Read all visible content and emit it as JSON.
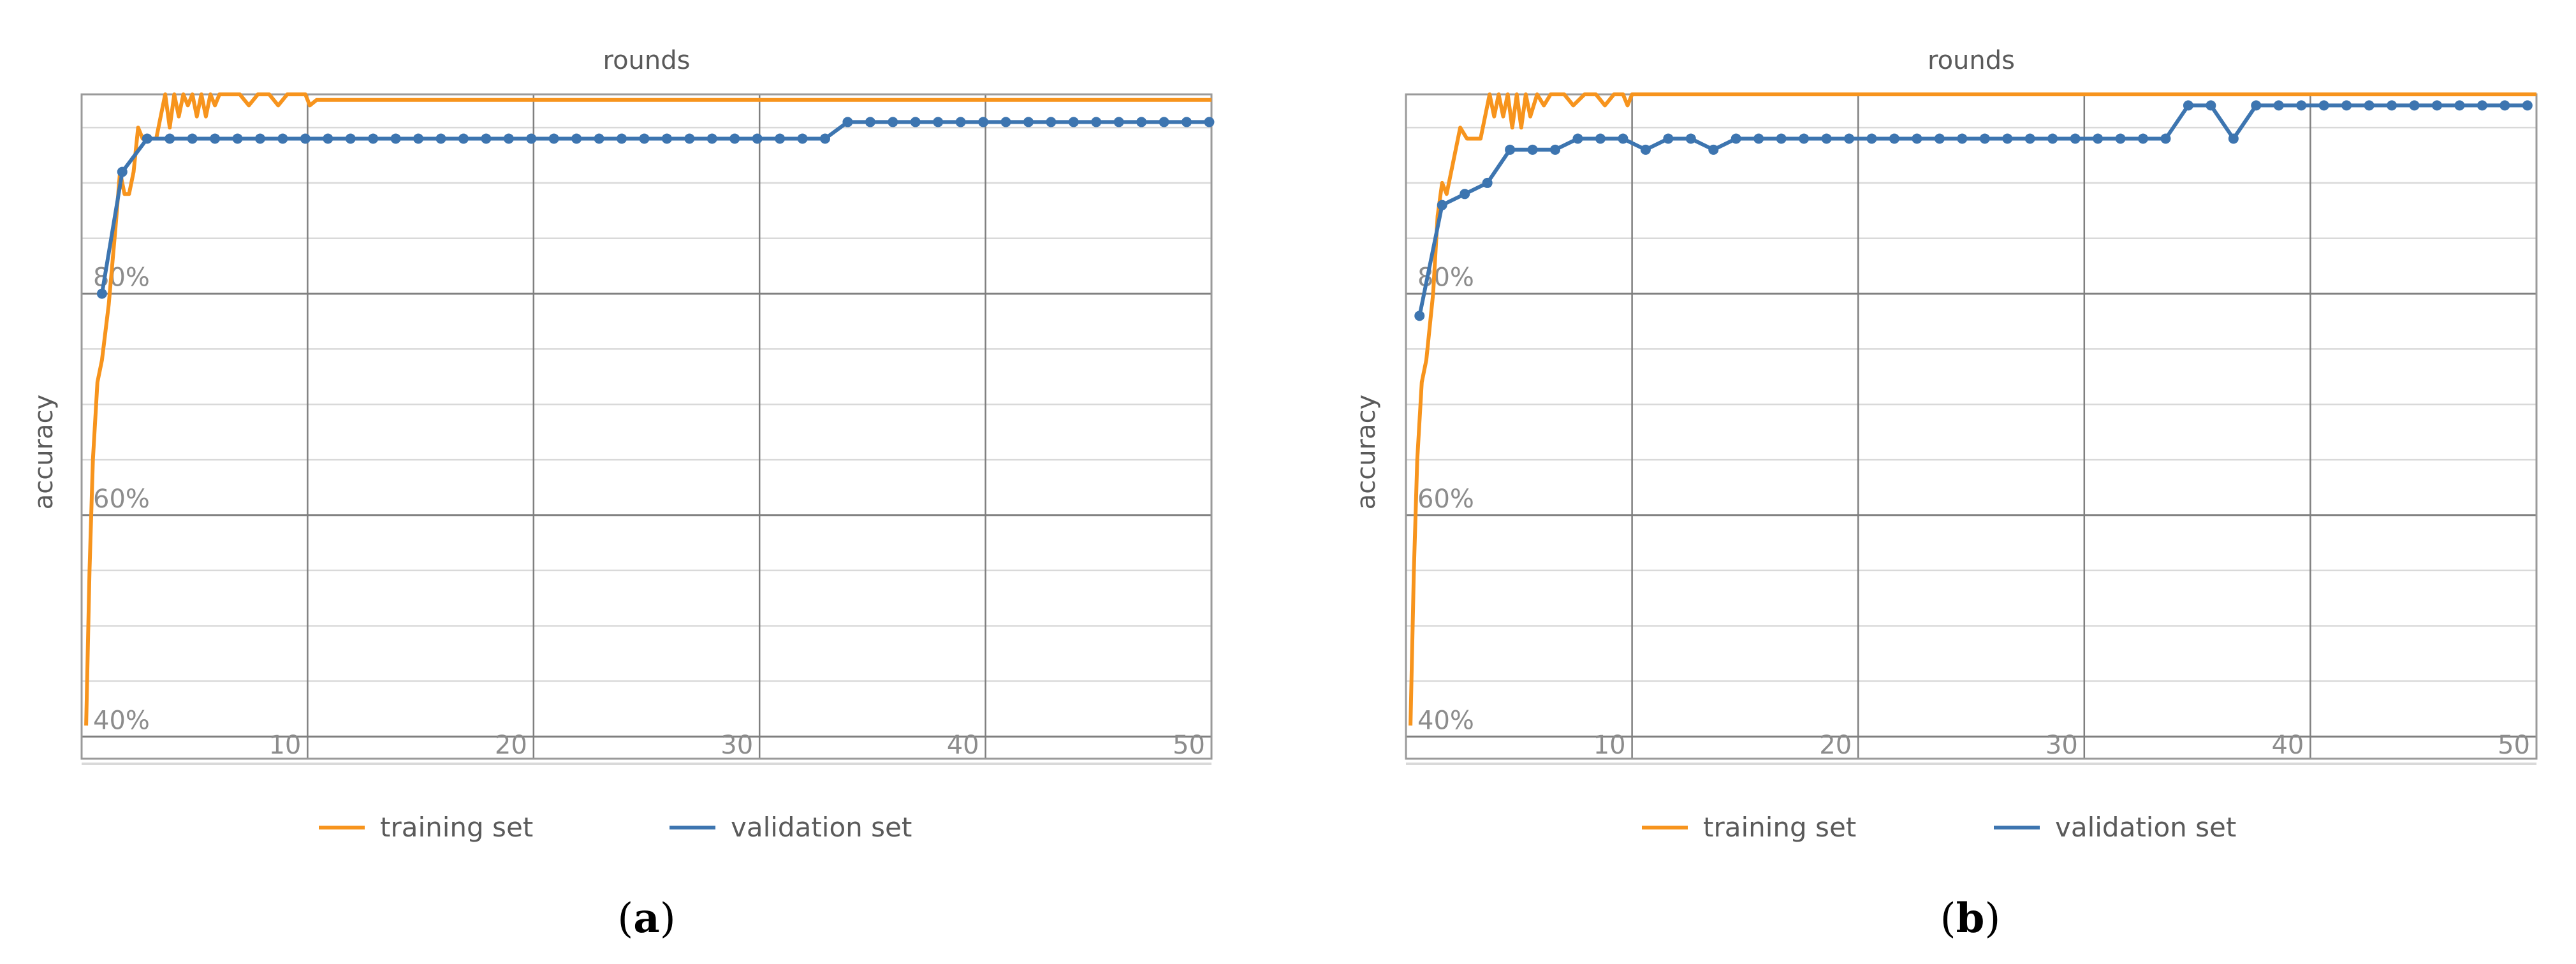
{
  "figure": {
    "panels": [
      {
        "caption": "(a)",
        "caption_letter": "a"
      },
      {
        "caption": "(b)",
        "caption_letter": "b"
      }
    ]
  },
  "colors": {
    "training": "#f7941d",
    "validation": "#3d75b0",
    "grid_major": "#7f7f7f",
    "grid_minor": "#d9d9d9",
    "frame": "#9a9a9a",
    "tick_text": "#8c8c8c",
    "title_text": "#5a5a5a"
  },
  "chart_data": [
    {
      "type": "line",
      "title": "rounds",
      "xlabel": "",
      "ylabel": "accuracy",
      "xlim": [
        0,
        50
      ],
      "ylim": [
        0.38,
        0.98
      ],
      "x_ticks": [
        10,
        20,
        30,
        40,
        50
      ],
      "x_tick_labels": [
        "10",
        "20",
        "30",
        "40",
        "50"
      ],
      "y_ticks": [
        0.4,
        0.6,
        0.8
      ],
      "y_tick_labels": [
        "40%",
        "60%",
        "80%"
      ],
      "grid": true,
      "legend": "bottom",
      "series": [
        {
          "name": "training set",
          "color_key": "training",
          "markers": false,
          "points": [
            [
              0.2,
              0.41
            ],
            [
              0.35,
              0.55
            ],
            [
              0.5,
              0.65
            ],
            [
              0.7,
              0.72
            ],
            [
              0.9,
              0.74
            ],
            [
              1.2,
              0.79
            ],
            [
              1.5,
              0.86
            ],
            [
              1.7,
              0.91
            ],
            [
              1.9,
              0.89
            ],
            [
              2.1,
              0.89
            ],
            [
              2.3,
              0.91
            ],
            [
              2.5,
              0.95
            ],
            [
              2.7,
              0.94
            ],
            [
              3.0,
              0.94
            ],
            [
              3.3,
              0.94
            ],
            [
              3.5,
              0.96
            ],
            [
              3.7,
              0.98
            ],
            [
              3.9,
              0.95
            ],
            [
              4.1,
              0.98
            ],
            [
              4.3,
              0.96
            ],
            [
              4.5,
              0.98
            ],
            [
              4.7,
              0.97
            ],
            [
              4.9,
              0.98
            ],
            [
              5.1,
              0.96
            ],
            [
              5.3,
              0.98
            ],
            [
              5.5,
              0.96
            ],
            [
              5.7,
              0.98
            ],
            [
              5.9,
              0.97
            ],
            [
              6.1,
              0.98
            ],
            [
              6.5,
              0.98
            ],
            [
              7.0,
              0.98
            ],
            [
              7.4,
              0.97
            ],
            [
              7.8,
              0.98
            ],
            [
              8.3,
              0.98
            ],
            [
              8.7,
              0.97
            ],
            [
              9.1,
              0.98
            ],
            [
              9.5,
              0.98
            ],
            [
              9.9,
              0.98
            ],
            [
              10.1,
              0.97
            ],
            [
              10.4,
              0.975
            ],
            [
              50,
              0.975
            ]
          ]
        },
        {
          "name": "validation set",
          "color_key": "validation",
          "markers": true,
          "points": [
            [
              0.9,
              0.8
            ],
            [
              1.8,
              0.91
            ],
            [
              2.9,
              0.94
            ],
            [
              3.9,
              0.94
            ],
            [
              4.9,
              0.94
            ],
            [
              5.9,
              0.94
            ],
            [
              6.9,
              0.94
            ],
            [
              7.9,
              0.94
            ],
            [
              8.9,
              0.94
            ],
            [
              9.9,
              0.94
            ],
            [
              10.9,
              0.94
            ],
            [
              11.9,
              0.94
            ],
            [
              12.9,
              0.94
            ],
            [
              13.9,
              0.94
            ],
            [
              14.9,
              0.94
            ],
            [
              15.9,
              0.94
            ],
            [
              16.9,
              0.94
            ],
            [
              17.9,
              0.94
            ],
            [
              18.9,
              0.94
            ],
            [
              19.9,
              0.94
            ],
            [
              20.9,
              0.94
            ],
            [
              21.9,
              0.94
            ],
            [
              22.9,
              0.94
            ],
            [
              23.9,
              0.94
            ],
            [
              24.9,
              0.94
            ],
            [
              25.9,
              0.94
            ],
            [
              26.9,
              0.94
            ],
            [
              27.9,
              0.94
            ],
            [
              28.9,
              0.94
            ],
            [
              29.9,
              0.94
            ],
            [
              30.9,
              0.94
            ],
            [
              31.9,
              0.94
            ],
            [
              32.9,
              0.94
            ],
            [
              33.9,
              0.955
            ],
            [
              34.9,
              0.955
            ],
            [
              35.9,
              0.955
            ],
            [
              36.9,
              0.955
            ],
            [
              37.9,
              0.955
            ],
            [
              38.9,
              0.955
            ],
            [
              39.9,
              0.955
            ],
            [
              40.9,
              0.955
            ],
            [
              41.9,
              0.955
            ],
            [
              42.9,
              0.955
            ],
            [
              43.9,
              0.955
            ],
            [
              44.9,
              0.955
            ],
            [
              45.9,
              0.955
            ],
            [
              46.9,
              0.955
            ],
            [
              47.9,
              0.955
            ],
            [
              48.9,
              0.955
            ],
            [
              49.9,
              0.955
            ]
          ]
        }
      ]
    },
    {
      "type": "line",
      "title": "rounds",
      "xlabel": "",
      "ylabel": "accuracy",
      "xlim": [
        0,
        50
      ],
      "ylim": [
        0.38,
        0.98
      ],
      "x_ticks": [
        10,
        20,
        30,
        40,
        50
      ],
      "x_tick_labels": [
        "10",
        "20",
        "30",
        "40",
        "50"
      ],
      "y_ticks": [
        0.4,
        0.6,
        0.8
      ],
      "y_tick_labels": [
        "40%",
        "60%",
        "80%"
      ],
      "grid": true,
      "legend": "bottom",
      "series": [
        {
          "name": "training set",
          "color_key": "training",
          "markers": false,
          "points": [
            [
              0.2,
              0.41
            ],
            [
              0.35,
              0.55
            ],
            [
              0.5,
              0.65
            ],
            [
              0.7,
              0.72
            ],
            [
              0.9,
              0.74
            ],
            [
              1.2,
              0.8
            ],
            [
              1.4,
              0.87
            ],
            [
              1.6,
              0.9
            ],
            [
              1.8,
              0.89
            ],
            [
              2.0,
              0.91
            ],
            [
              2.2,
              0.93
            ],
            [
              2.4,
              0.95
            ],
            [
              2.7,
              0.94
            ],
            [
              3.0,
              0.94
            ],
            [
              3.3,
              0.94
            ],
            [
              3.5,
              0.96
            ],
            [
              3.7,
              0.98
            ],
            [
              3.9,
              0.96
            ],
            [
              4.1,
              0.98
            ],
            [
              4.3,
              0.96
            ],
            [
              4.5,
              0.98
            ],
            [
              4.7,
              0.95
            ],
            [
              4.9,
              0.98
            ],
            [
              5.1,
              0.95
            ],
            [
              5.3,
              0.98
            ],
            [
              5.5,
              0.96
            ],
            [
              5.8,
              0.98
            ],
            [
              6.1,
              0.97
            ],
            [
              6.4,
              0.98
            ],
            [
              7.0,
              0.98
            ],
            [
              7.4,
              0.97
            ],
            [
              7.9,
              0.98
            ],
            [
              8.4,
              0.98
            ],
            [
              8.8,
              0.97
            ],
            [
              9.2,
              0.98
            ],
            [
              9.6,
              0.98
            ],
            [
              9.8,
              0.97
            ],
            [
              10.0,
              0.98
            ],
            [
              50,
              0.98
            ]
          ]
        },
        {
          "name": "validation set",
          "color_key": "validation",
          "markers": true,
          "points": [
            [
              0.6,
              0.78
            ],
            [
              1.6,
              0.88
            ],
            [
              2.6,
              0.89
            ],
            [
              3.6,
              0.9
            ],
            [
              4.6,
              0.93
            ],
            [
              5.6,
              0.93
            ],
            [
              6.6,
              0.93
            ],
            [
              7.6,
              0.94
            ],
            [
              8.6,
              0.94
            ],
            [
              9.6,
              0.94
            ],
            [
              10.6,
              0.93
            ],
            [
              11.6,
              0.94
            ],
            [
              12.6,
              0.94
            ],
            [
              13.6,
              0.93
            ],
            [
              14.6,
              0.94
            ],
            [
              15.6,
              0.94
            ],
            [
              16.6,
              0.94
            ],
            [
              17.6,
              0.94
            ],
            [
              18.6,
              0.94
            ],
            [
              19.6,
              0.94
            ],
            [
              20.6,
              0.94
            ],
            [
              21.6,
              0.94
            ],
            [
              22.6,
              0.94
            ],
            [
              23.6,
              0.94
            ],
            [
              24.6,
              0.94
            ],
            [
              25.6,
              0.94
            ],
            [
              26.6,
              0.94
            ],
            [
              27.6,
              0.94
            ],
            [
              28.6,
              0.94
            ],
            [
              29.6,
              0.94
            ],
            [
              30.6,
              0.94
            ],
            [
              31.6,
              0.94
            ],
            [
              32.6,
              0.94
            ],
            [
              33.6,
              0.94
            ],
            [
              34.6,
              0.97
            ],
            [
              35.6,
              0.97
            ],
            [
              36.6,
              0.94
            ],
            [
              37.6,
              0.97
            ],
            [
              38.6,
              0.97
            ],
            [
              39.6,
              0.97
            ],
            [
              40.6,
              0.97
            ],
            [
              41.6,
              0.97
            ],
            [
              42.6,
              0.97
            ],
            [
              43.6,
              0.97
            ],
            [
              44.6,
              0.97
            ],
            [
              45.6,
              0.97
            ],
            [
              46.6,
              0.97
            ],
            [
              47.6,
              0.97
            ],
            [
              48.6,
              0.97
            ],
            [
              49.6,
              0.97
            ]
          ]
        }
      ]
    }
  ]
}
